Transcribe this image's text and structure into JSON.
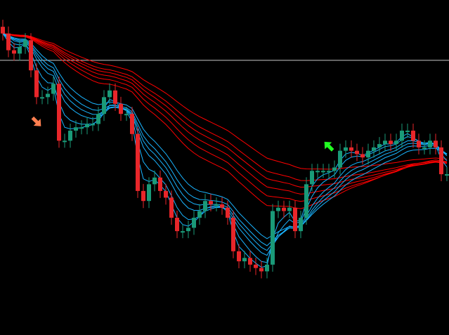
{
  "chart_data": {
    "type": "candlestick",
    "ylim": [
      0,
      100
    ],
    "grid": false,
    "close": [
      90,
      85,
      84,
      86,
      88,
      79,
      71,
      71,
      72,
      75,
      58,
      58,
      61,
      62,
      62,
      63,
      63,
      66,
      71,
      73,
      69,
      66,
      66,
      60,
      43,
      40,
      45,
      47,
      43,
      41,
      35,
      31,
      31,
      32,
      35,
      37,
      40,
      39,
      39,
      38,
      35,
      25,
      22,
      23,
      21,
      20,
      19,
      21,
      37,
      38,
      37,
      38,
      31,
      35,
      45,
      49,
      49,
      49,
      49,
      50,
      55,
      56,
      55,
      54,
      53,
      55,
      56,
      57,
      58,
      57,
      58,
      61,
      61,
      58,
      56,
      56,
      58,
      56,
      48,
      48
    ],
    "horizontal_line": 82,
    "moving_averages": {
      "fast_periods": [
        3,
        5,
        8,
        10,
        12,
        15
      ],
      "slow_periods": [
        30,
        35,
        40,
        45,
        50,
        60
      ]
    },
    "signals": [
      {
        "type": "sell-arrow",
        "index": 6,
        "color": "#ff7f50"
      },
      {
        "type": "buy-arrow",
        "index": 58,
        "color": "#22ff22"
      }
    ],
    "colors": {
      "background": "#000000",
      "bull": "#1a9a78",
      "bear": "#e8262a",
      "fast_ma": "#1ab4ff",
      "slow_ma": "#ff0000",
      "hline": "#c8c8c8"
    }
  }
}
